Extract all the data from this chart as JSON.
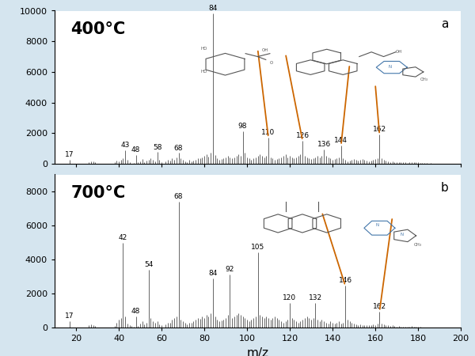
{
  "background_color": "#d5e5ef",
  "panel_bg": "#ffffff",
  "panel_a": {
    "label": "400°C",
    "panel_letter": "a",
    "ylim": [
      0,
      10000
    ],
    "yticks": [
      0,
      2000,
      4000,
      6000,
      8000,
      10000
    ],
    "peaks": [
      [
        17,
        280
      ],
      [
        26,
        100
      ],
      [
        27,
        180
      ],
      [
        28,
        150
      ],
      [
        29,
        100
      ],
      [
        38,
        80
      ],
      [
        39,
        200
      ],
      [
        40,
        150
      ],
      [
        41,
        280
      ],
      [
        42,
        350
      ],
      [
        43,
        900
      ],
      [
        44,
        250
      ],
      [
        45,
        120
      ],
      [
        47,
        60
      ],
      [
        48,
        550
      ],
      [
        49,
        80
      ],
      [
        50,
        180
      ],
      [
        51,
        300
      ],
      [
        52,
        120
      ],
      [
        53,
        200
      ],
      [
        54,
        250
      ],
      [
        55,
        380
      ],
      [
        56,
        250
      ],
      [
        57,
        160
      ],
      [
        58,
        750
      ],
      [
        59,
        250
      ],
      [
        60,
        120
      ],
      [
        62,
        150
      ],
      [
        63,
        250
      ],
      [
        64,
        200
      ],
      [
        65,
        350
      ],
      [
        66,
        280
      ],
      [
        67,
        420
      ],
      [
        68,
        700
      ],
      [
        69,
        350
      ],
      [
        70,
        250
      ],
      [
        71,
        160
      ],
      [
        72,
        120
      ],
      [
        73,
        250
      ],
      [
        74,
        160
      ],
      [
        75,
        200
      ],
      [
        76,
        250
      ],
      [
        77,
        380
      ],
      [
        78,
        350
      ],
      [
        79,
        430
      ],
      [
        80,
        520
      ],
      [
        81,
        600
      ],
      [
        82,
        480
      ],
      [
        83,
        700
      ],
      [
        84,
        9800
      ],
      [
        85,
        550
      ],
      [
        86,
        350
      ],
      [
        87,
        250
      ],
      [
        88,
        300
      ],
      [
        89,
        350
      ],
      [
        90,
        430
      ],
      [
        91,
        520
      ],
      [
        92,
        430
      ],
      [
        93,
        350
      ],
      [
        94,
        430
      ],
      [
        95,
        520
      ],
      [
        96,
        600
      ],
      [
        97,
        520
      ],
      [
        98,
        2100
      ],
      [
        99,
        700
      ],
      [
        100,
        430
      ],
      [
        101,
        350
      ],
      [
        102,
        250
      ],
      [
        103,
        350
      ],
      [
        104,
        430
      ],
      [
        105,
        520
      ],
      [
        106,
        600
      ],
      [
        107,
        520
      ],
      [
        108,
        430
      ],
      [
        109,
        520
      ],
      [
        110,
        1700
      ],
      [
        111,
        430
      ],
      [
        112,
        350
      ],
      [
        113,
        250
      ],
      [
        114,
        300
      ],
      [
        115,
        350
      ],
      [
        116,
        430
      ],
      [
        117,
        520
      ],
      [
        118,
        600
      ],
      [
        119,
        430
      ],
      [
        120,
        520
      ],
      [
        121,
        430
      ],
      [
        122,
        350
      ],
      [
        123,
        430
      ],
      [
        124,
        520
      ],
      [
        125,
        600
      ],
      [
        126,
        1500
      ],
      [
        127,
        520
      ],
      [
        128,
        430
      ],
      [
        129,
        350
      ],
      [
        130,
        300
      ],
      [
        131,
        350
      ],
      [
        132,
        430
      ],
      [
        133,
        520
      ],
      [
        134,
        430
      ],
      [
        135,
        520
      ],
      [
        136,
        950
      ],
      [
        137,
        520
      ],
      [
        138,
        430
      ],
      [
        139,
        350
      ],
      [
        140,
        250
      ],
      [
        141,
        300
      ],
      [
        142,
        350
      ],
      [
        143,
        430
      ],
      [
        144,
        1200
      ],
      [
        145,
        350
      ],
      [
        146,
        250
      ],
      [
        147,
        160
      ],
      [
        148,
        200
      ],
      [
        149,
        250
      ],
      [
        150,
        300
      ],
      [
        151,
        250
      ],
      [
        152,
        200
      ],
      [
        153,
        250
      ],
      [
        154,
        300
      ],
      [
        155,
        250
      ],
      [
        156,
        200
      ],
      [
        157,
        160
      ],
      [
        158,
        200
      ],
      [
        159,
        250
      ],
      [
        160,
        300
      ],
      [
        161,
        350
      ],
      [
        162,
        1900
      ],
      [
        163,
        350
      ],
      [
        164,
        250
      ],
      [
        165,
        200
      ],
      [
        166,
        160
      ],
      [
        167,
        120
      ],
      [
        168,
        160
      ],
      [
        169,
        120
      ],
      [
        170,
        80
      ],
      [
        171,
        100
      ],
      [
        172,
        120
      ],
      [
        173,
        100
      ],
      [
        174,
        80
      ],
      [
        175,
        60
      ],
      [
        176,
        80
      ],
      [
        177,
        100
      ],
      [
        178,
        120
      ],
      [
        179,
        100
      ],
      [
        180,
        80
      ],
      [
        181,
        60
      ],
      [
        182,
        50
      ],
      [
        183,
        40
      ],
      [
        184,
        30
      ],
      [
        185,
        25
      ],
      [
        186,
        30
      ],
      [
        187,
        25
      ],
      [
        188,
        15
      ],
      [
        189,
        12
      ],
      [
        190,
        8
      ],
      [
        191,
        12
      ],
      [
        192,
        8
      ],
      [
        193,
        6
      ],
      [
        194,
        4
      ],
      [
        195,
        2
      ],
      [
        196,
        4
      ],
      [
        197,
        2
      ],
      [
        198,
        4
      ],
      [
        199,
        2
      ],
      [
        200,
        1
      ]
    ],
    "labeled_peaks": [
      {
        "mz": 17,
        "label": "17"
      },
      {
        "mz": 43,
        "label": "43"
      },
      {
        "mz": 48,
        "label": "48"
      },
      {
        "mz": 58,
        "label": "58"
      },
      {
        "mz": 68,
        "label": "68"
      },
      {
        "mz": 84,
        "label": "84"
      },
      {
        "mz": 98,
        "label": "98"
      },
      {
        "mz": 110,
        "label": "110"
      },
      {
        "mz": 126,
        "label": "126"
      },
      {
        "mz": 136,
        "label": "136"
      },
      {
        "mz": 144,
        "label": "144"
      },
      {
        "mz": 162,
        "label": "162"
      }
    ],
    "orange_annotations": [
      {
        "x1": 110,
        "y1": 1700,
        "x2": 105,
        "y2": 7500
      },
      {
        "x1": 126,
        "y1": 1500,
        "x2": 118,
        "y2": 7200
      },
      {
        "x1": 144,
        "y1": 1200,
        "x2": 148,
        "y2": 6500
      },
      {
        "x1": 162,
        "y1": 1900,
        "x2": 160,
        "y2": 5200
      }
    ]
  },
  "panel_b": {
    "label": "700°C",
    "panel_letter": "b",
    "ylim": [
      0,
      9000
    ],
    "yticks": [
      0,
      2000,
      4000,
      6000,
      8000
    ],
    "peaks": [
      [
        17,
        380
      ],
      [
        26,
        120
      ],
      [
        27,
        180
      ],
      [
        28,
        150
      ],
      [
        29,
        100
      ],
      [
        38,
        80
      ],
      [
        39,
        300
      ],
      [
        40,
        450
      ],
      [
        41,
        550
      ],
      [
        42,
        5000
      ],
      [
        43,
        650
      ],
      [
        44,
        250
      ],
      [
        45,
        120
      ],
      [
        46,
        80
      ],
      [
        47,
        60
      ],
      [
        48,
        650
      ],
      [
        49,
        80
      ],
      [
        50,
        220
      ],
      [
        51,
        380
      ],
      [
        52,
        180
      ],
      [
        53,
        300
      ],
      [
        54,
        3400
      ],
      [
        55,
        550
      ],
      [
        56,
        380
      ],
      [
        57,
        270
      ],
      [
        58,
        380
      ],
      [
        59,
        180
      ],
      [
        60,
        120
      ],
      [
        62,
        180
      ],
      [
        63,
        300
      ],
      [
        64,
        270
      ],
      [
        65,
        450
      ],
      [
        66,
        550
      ],
      [
        67,
        650
      ],
      [
        68,
        7400
      ],
      [
        69,
        450
      ],
      [
        70,
        380
      ],
      [
        71,
        270
      ],
      [
        72,
        180
      ],
      [
        73,
        300
      ],
      [
        74,
        270
      ],
      [
        75,
        350
      ],
      [
        76,
        450
      ],
      [
        77,
        550
      ],
      [
        78,
        500
      ],
      [
        79,
        650
      ],
      [
        80,
        550
      ],
      [
        81,
        750
      ],
      [
        82,
        650
      ],
      [
        83,
        850
      ],
      [
        84,
        2900
      ],
      [
        85,
        650
      ],
      [
        86,
        450
      ],
      [
        87,
        380
      ],
      [
        88,
        420
      ],
      [
        89,
        450
      ],
      [
        90,
        550
      ],
      [
        91,
        750
      ],
      [
        92,
        3100
      ],
      [
        93,
        550
      ],
      [
        94,
        650
      ],
      [
        95,
        750
      ],
      [
        96,
        850
      ],
      [
        97,
        750
      ],
      [
        98,
        650
      ],
      [
        99,
        550
      ],
      [
        100,
        450
      ],
      [
        101,
        380
      ],
      [
        102,
        450
      ],
      [
        103,
        550
      ],
      [
        104,
        650
      ],
      [
        105,
        4400
      ],
      [
        106,
        750
      ],
      [
        107,
        650
      ],
      [
        108,
        550
      ],
      [
        109,
        650
      ],
      [
        110,
        550
      ],
      [
        111,
        450
      ],
      [
        112,
        550
      ],
      [
        113,
        650
      ],
      [
        114,
        550
      ],
      [
        115,
        450
      ],
      [
        116,
        380
      ],
      [
        117,
        300
      ],
      [
        118,
        380
      ],
      [
        119,
        450
      ],
      [
        120,
        1450
      ],
      [
        121,
        550
      ],
      [
        122,
        450
      ],
      [
        123,
        380
      ],
      [
        124,
        300
      ],
      [
        125,
        380
      ],
      [
        126,
        450
      ],
      [
        127,
        550
      ],
      [
        128,
        650
      ],
      [
        129,
        550
      ],
      [
        130,
        450
      ],
      [
        131,
        550
      ],
      [
        132,
        1450
      ],
      [
        133,
        450
      ],
      [
        134,
        380
      ],
      [
        135,
        450
      ],
      [
        136,
        380
      ],
      [
        137,
        300
      ],
      [
        138,
        250
      ],
      [
        139,
        380
      ],
      [
        140,
        300
      ],
      [
        141,
        250
      ],
      [
        142,
        300
      ],
      [
        143,
        380
      ],
      [
        144,
        250
      ],
      [
        145,
        300
      ],
      [
        146,
        2450
      ],
      [
        147,
        450
      ],
      [
        148,
        380
      ],
      [
        149,
        300
      ],
      [
        150,
        250
      ],
      [
        151,
        200
      ],
      [
        152,
        160
      ],
      [
        153,
        200
      ],
      [
        154,
        160
      ],
      [
        155,
        120
      ],
      [
        156,
        160
      ],
      [
        157,
        120
      ],
      [
        158,
        160
      ],
      [
        159,
        200
      ],
      [
        160,
        160
      ],
      [
        161,
        250
      ],
      [
        162,
        950
      ],
      [
        163,
        250
      ],
      [
        164,
        200
      ],
      [
        165,
        160
      ],
      [
        166,
        120
      ],
      [
        167,
        80
      ],
      [
        168,
        120
      ],
      [
        169,
        80
      ],
      [
        170,
        60
      ],
      [
        171,
        80
      ],
      [
        172,
        60
      ],
      [
        173,
        40
      ],
      [
        174,
        60
      ],
      [
        175,
        40
      ],
      [
        176,
        60
      ],
      [
        177,
        80
      ],
      [
        178,
        60
      ],
      [
        179,
        40
      ],
      [
        180,
        30
      ],
      [
        181,
        25
      ],
      [
        182,
        20
      ],
      [
        183,
        15
      ],
      [
        184,
        12
      ],
      [
        185,
        8
      ],
      [
        186,
        12
      ],
      [
        187,
        8
      ],
      [
        188,
        6
      ],
      [
        189,
        4
      ],
      [
        190,
        2
      ],
      [
        191,
        4
      ],
      [
        192,
        2
      ],
      [
        193,
        1
      ],
      [
        194,
        1
      ],
      [
        195,
        1
      ],
      [
        196,
        1
      ],
      [
        197,
        1
      ],
      [
        198,
        1
      ],
      [
        199,
        1
      ],
      [
        200,
        1
      ]
    ],
    "labeled_peaks": [
      {
        "mz": 17,
        "label": "17"
      },
      {
        "mz": 42,
        "label": "42"
      },
      {
        "mz": 48,
        "label": "48"
      },
      {
        "mz": 54,
        "label": "54"
      },
      {
        "mz": 68,
        "label": "68"
      },
      {
        "mz": 84,
        "label": "84"
      },
      {
        "mz": 92,
        "label": "92"
      },
      {
        "mz": 105,
        "label": "105"
      },
      {
        "mz": 120,
        "label": "120"
      },
      {
        "mz": 132,
        "label": "132"
      },
      {
        "mz": 146,
        "label": "146"
      },
      {
        "mz": 162,
        "label": "162"
      }
    ],
    "orange_annotations": [
      {
        "x1": 146,
        "y1": 2450,
        "x2": 135,
        "y2": 6800
      },
      {
        "x1": 162,
        "y1": 950,
        "x2": 168,
        "y2": 6500
      }
    ]
  },
  "xlim": [
    10,
    200
  ],
  "xticks": [
    20,
    40,
    60,
    80,
    100,
    120,
    140,
    160,
    180,
    200
  ],
  "xlabel": "m/z",
  "bar_color": "#666666",
  "orange_color": "#cc6600",
  "label_fontsize": 6.5,
  "temp_fontsize": 15,
  "axis_fontsize": 8
}
